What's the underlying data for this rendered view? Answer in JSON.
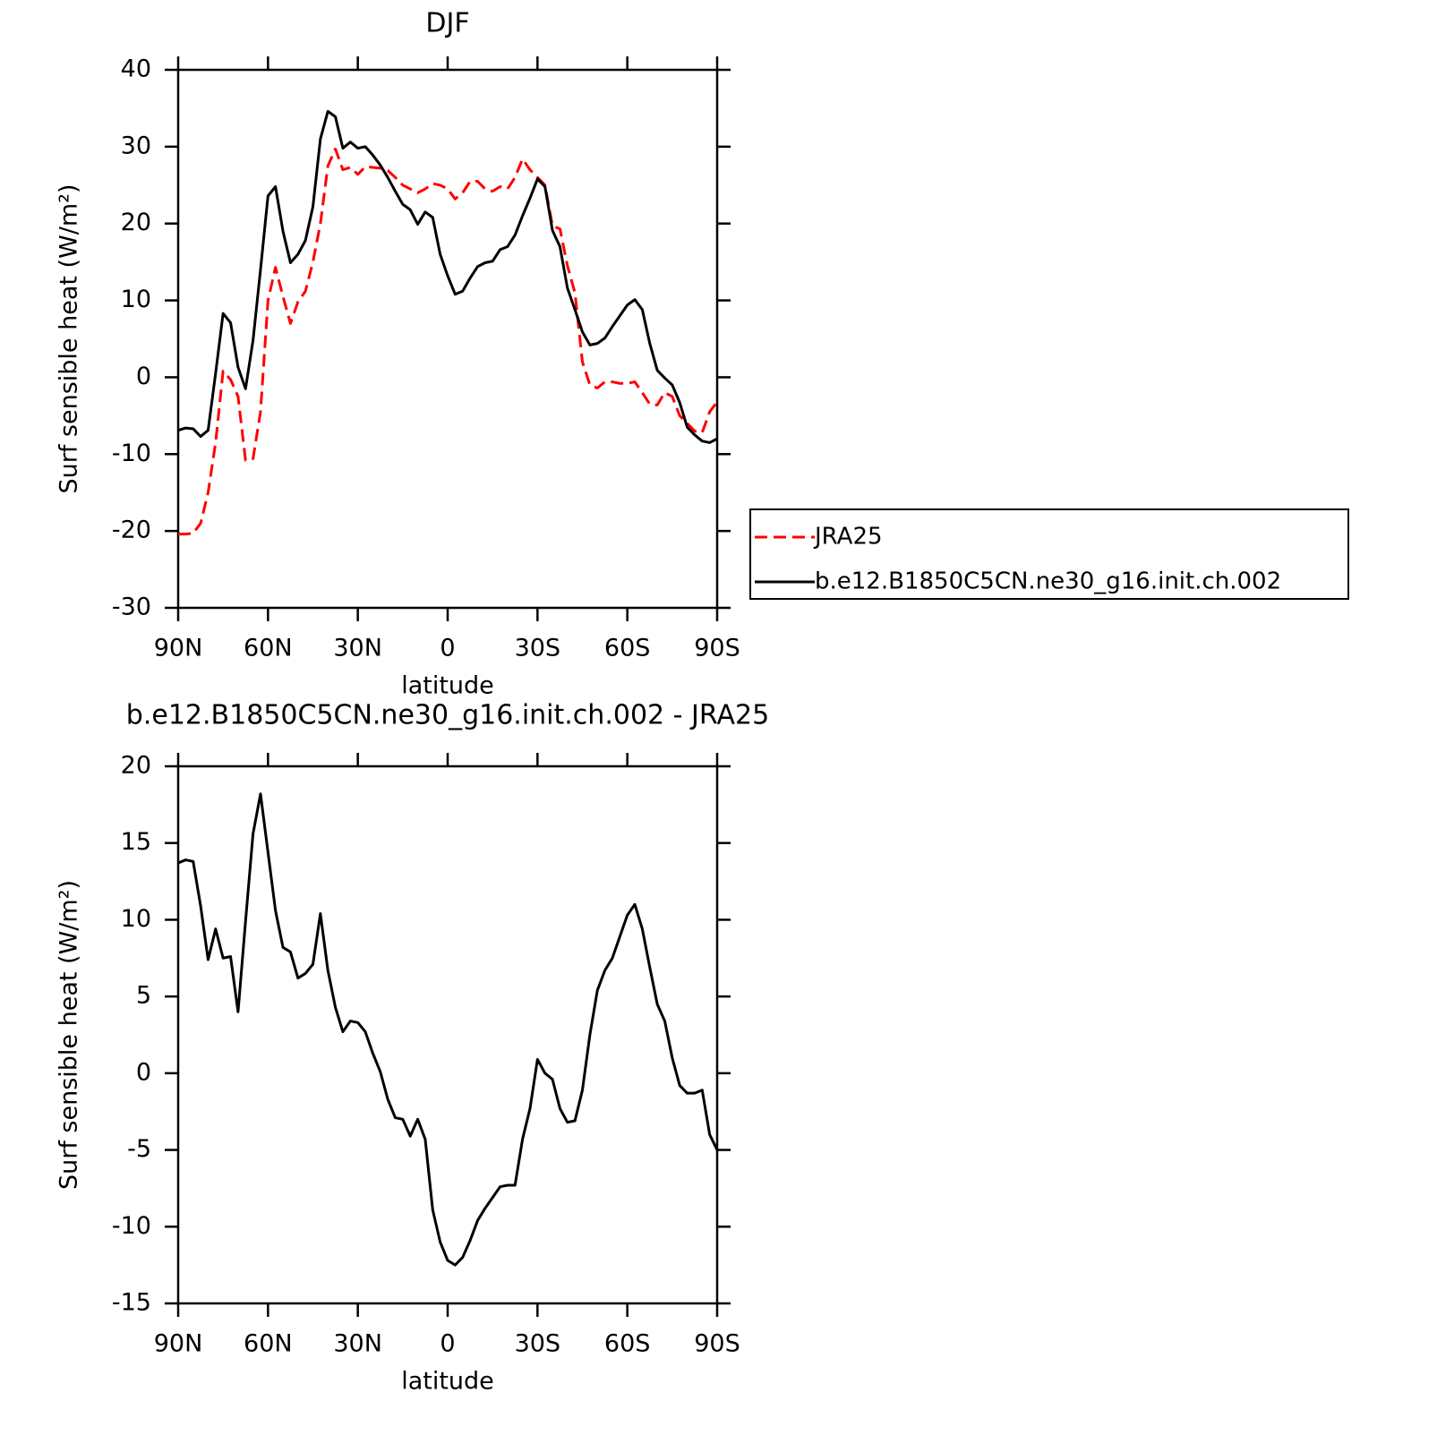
{
  "chart_data": [
    {
      "type": "line",
      "title": "DJF",
      "xlabel": "latitude",
      "ylabel": "Surf sensible heat (W/m²)",
      "x": [
        90,
        87.5,
        85,
        82.5,
        80,
        77.5,
        75,
        72.5,
        70,
        67.5,
        65,
        62.5,
        60,
        57.5,
        55,
        52.5,
        50,
        47.5,
        45,
        42.5,
        40,
        37.5,
        35,
        32.5,
        30,
        27.5,
        25,
        22.5,
        20,
        17.5,
        15,
        12.5,
        10,
        7.5,
        5,
        2.5,
        0,
        -2.5,
        -5,
        -7.5,
        -10,
        -12.5,
        -15,
        -17.5,
        -20,
        -22.5,
        -25,
        -27.5,
        -30,
        -32.5,
        -35,
        -37.5,
        -40,
        -42.5,
        -45,
        -47.5,
        -50,
        -52.5,
        -55,
        -57.5,
        -60,
        -62.5,
        -65,
        -67.5,
        -70,
        -72.5,
        -75,
        -77.5,
        -80,
        -82.5,
        -85,
        -87.5,
        -90
      ],
      "xlim": [
        90,
        -90
      ],
      "xticks": [
        {
          "value": 90,
          "label": "90N"
        },
        {
          "value": 60,
          "label": "60N"
        },
        {
          "value": 30,
          "label": "30N"
        },
        0,
        {
          "value": -30,
          "label": "30S"
        },
        {
          "value": -60,
          "label": "60S"
        },
        {
          "value": -90,
          "label": "90S"
        }
      ],
      "ylim": [
        -30,
        40
      ],
      "yticks": [
        -30,
        -20,
        -10,
        0,
        10,
        20,
        30,
        40
      ],
      "legend": "right",
      "series": [
        {
          "name": "JRA25",
          "color": "#ff0000",
          "linestyle": "dashed",
          "values": [
            -20.4,
            -20.4,
            -20.3,
            -19,
            -15,
            -8.5,
            0.8,
            -0.3,
            -2.5,
            -10.8,
            -10.6,
            -4.5,
            10,
            14.3,
            10.5,
            7,
            9.8,
            11.2,
            15,
            20,
            27.5,
            29.7,
            27,
            27.3,
            26.4,
            27.4,
            27.3,
            27.2,
            26.9,
            26,
            25,
            24.5,
            24,
            24.5,
            25.2,
            25,
            24.5,
            23.2,
            24,
            25.5,
            25.5,
            24.5,
            24.2,
            24.8,
            24.5,
            26,
            28.4,
            27,
            26,
            25,
            19.7,
            19.3,
            14.5,
            11,
            2,
            -1,
            -1.4,
            -0.6,
            -0.6,
            -0.8,
            -0.8,
            -0.6,
            -2,
            -3.5,
            -3.6,
            -2,
            -2.5,
            -5,
            -6,
            -7,
            -7.2,
            -4.5,
            -3.2
          ]
        },
        {
          "name": "b.e12.B1850C5CN.ne30_g16.init.ch.002",
          "color": "#000000",
          "linestyle": "solid",
          "values": [
            -6.9,
            -6.6,
            -6.7,
            -7.7,
            -6.9,
            0.5,
            8.3,
            7.1,
            1.3,
            -1.5,
            4.8,
            14,
            23.6,
            24.8,
            19,
            14.9,
            16,
            17.8,
            22.2,
            31,
            34.6,
            33.9,
            29.8,
            30.6,
            29.8,
            30,
            28.9,
            27.6,
            26,
            24.2,
            22.5,
            21.8,
            19.9,
            21.5,
            20.8,
            16,
            13.2,
            10.8,
            11.2,
            12.9,
            14.4,
            14.9,
            15.1,
            16.6,
            17,
            18.5,
            21,
            23.3,
            25.8,
            24.8,
            19.1,
            17,
            11.6,
            8.8,
            5.9,
            4.2,
            4.4,
            5.1,
            6.6,
            8,
            9.4,
            10.1,
            8.8,
            4.4,
            0.9,
            -0.1,
            -1,
            -3.3,
            -6.5,
            -7.5,
            -8.3,
            -8.5,
            -8
          ]
        }
      ]
    },
    {
      "type": "line",
      "title": "b.e12.B1850C5CN.ne30_g16.init.ch.002 - JRA25",
      "xlabel": "latitude",
      "ylabel": "Surf sensible heat (W/m²)",
      "x": [
        90,
        87.5,
        85,
        82.5,
        80,
        77.5,
        75,
        72.5,
        70,
        67.5,
        65,
        62.5,
        60,
        57.5,
        55,
        52.5,
        50,
        47.5,
        45,
        42.5,
        40,
        37.5,
        35,
        32.5,
        30,
        27.5,
        25,
        22.5,
        20,
        17.5,
        15,
        12.5,
        10,
        7.5,
        5,
        2.5,
        0,
        -2.5,
        -5,
        -7.5,
        -10,
        -12.5,
        -15,
        -17.5,
        -20,
        -22.5,
        -25,
        -27.5,
        -30,
        -32.5,
        -35,
        -37.5,
        -40,
        -42.5,
        -45,
        -47.5,
        -50,
        -52.5,
        -55,
        -57.5,
        -60,
        -62.5,
        -65,
        -67.5,
        -70,
        -72.5,
        -75,
        -77.5,
        -80,
        -82.5,
        -85,
        -87.5,
        -90
      ],
      "xlim": [
        90,
        -90
      ],
      "xticks": [
        {
          "value": 90,
          "label": "90N"
        },
        {
          "value": 60,
          "label": "60N"
        },
        {
          "value": 30,
          "label": "30N"
        },
        0,
        {
          "value": -30,
          "label": "30S"
        },
        {
          "value": -60,
          "label": "60S"
        },
        {
          "value": -90,
          "label": "90S"
        }
      ],
      "ylim": [
        -15,
        20
      ],
      "yticks": [
        -15,
        -10,
        -5,
        0,
        5,
        10,
        15,
        20
      ],
      "series": [
        {
          "color": "#000000",
          "linestyle": "solid",
          "values": [
            13.7,
            13.9,
            13.8,
            10.9,
            7.4,
            9.4,
            7.5,
            7.6,
            4,
            9.9,
            15.6,
            18.2,
            14.4,
            10.6,
            8.2,
            7.9,
            6.2,
            6.5,
            7.1,
            10.4,
            6.7,
            4.3,
            2.7,
            3.4,
            3.3,
            2.7,
            1.3,
            0.1,
            -1.7,
            -2.9,
            -3,
            -4.1,
            -3,
            -4.3,
            -8.9,
            -11,
            -12.2,
            -12.5,
            -12,
            -10.9,
            -9.6,
            -8.8,
            -8.1,
            -7.4,
            -7.3,
            -7.3,
            -4.3,
            -2.3,
            0.9,
            0,
            -0.4,
            -2.3,
            -3.2,
            -3.1,
            -1.1,
            2.5,
            5.4,
            6.7,
            7.5,
            8.9,
            10.3,
            11,
            9.4,
            6.9,
            4.5,
            3.4,
            1,
            -0.8,
            -1.3,
            -1.3,
            -1.1,
            -4,
            -5
          ]
        }
      ]
    }
  ]
}
